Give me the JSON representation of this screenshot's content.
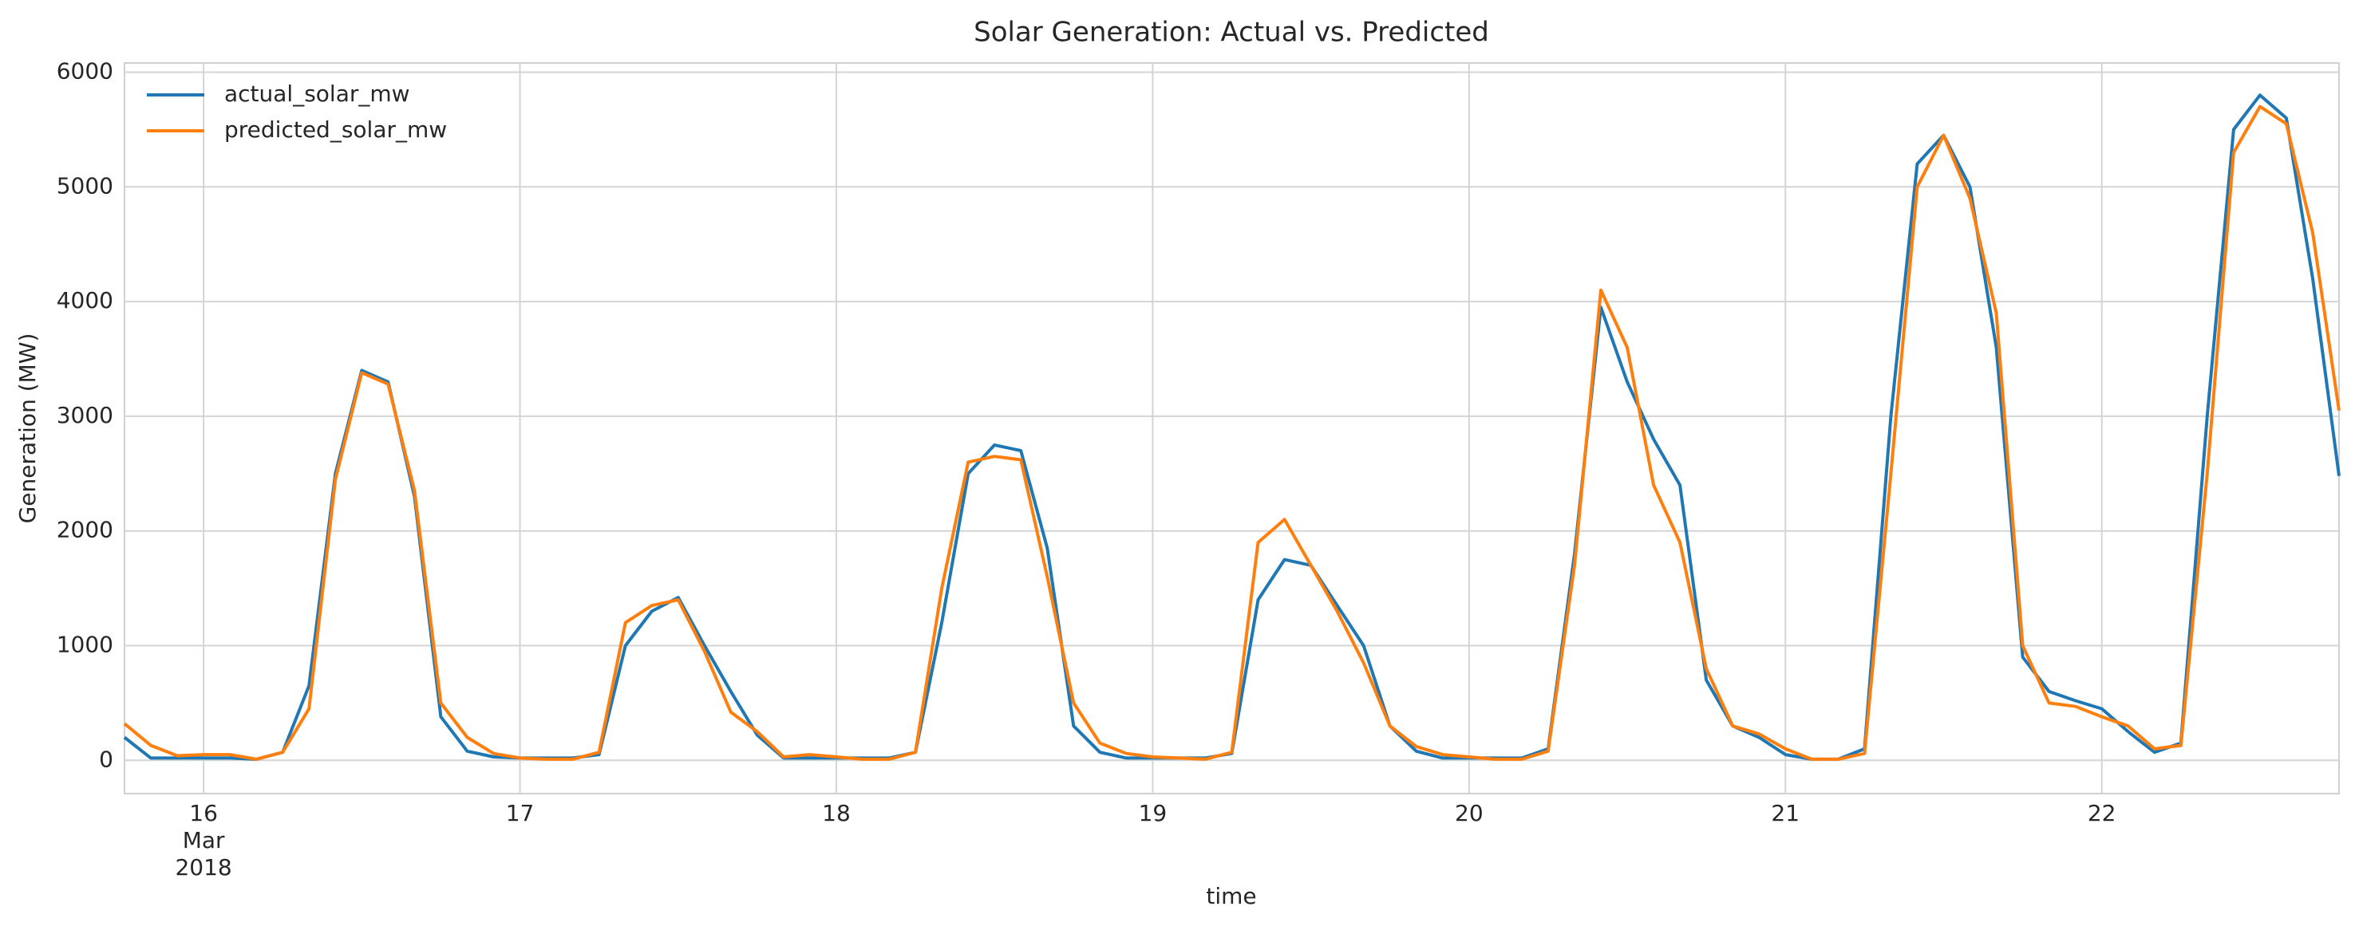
{
  "chart_data": {
    "type": "line",
    "title": "Solar Generation: Actual vs. Predicted",
    "xlabel": "time",
    "ylabel": "Generation (MW)",
    "x": [
      15.75,
      15.8333,
      15.9167,
      16,
      16.0833,
      16.1667,
      16.25,
      16.3333,
      16.4167,
      16.5,
      16.5833,
      16.6667,
      16.75,
      16.8333,
      16.9167,
      17,
      17.0833,
      17.1667,
      17.25,
      17.3333,
      17.4167,
      17.5,
      17.5833,
      17.6667,
      17.75,
      17.8333,
      17.9167,
      18,
      18.0833,
      18.1667,
      18.25,
      18.3333,
      18.4167,
      18.5,
      18.5833,
      18.6667,
      18.75,
      18.8333,
      18.9167,
      19,
      19.0833,
      19.1667,
      19.25,
      19.3333,
      19.4167,
      19.5,
      19.5833,
      19.6667,
      19.75,
      19.8333,
      19.9167,
      20,
      20.0833,
      20.1667,
      20.25,
      20.3333,
      20.4167,
      20.5,
      20.5833,
      20.6667,
      20.75,
      20.8333,
      20.9167,
      21,
      21.0833,
      21.1667,
      21.25,
      21.3333,
      21.4167,
      21.5,
      21.5833,
      21.6667,
      21.75,
      21.8333,
      21.9167,
      22,
      22.0833,
      22.1667,
      22.25,
      22.3333,
      22.4167,
      22.5,
      22.5833,
      22.6667,
      22.75
    ],
    "series": [
      {
        "name": "actual_solar_mw",
        "color": "#1f77b4",
        "values": [
          200,
          20,
          20,
          20,
          20,
          10,
          70,
          650,
          2500,
          3400,
          3300,
          2300,
          380,
          80,
          30,
          20,
          20,
          20,
          50,
          1000,
          1300,
          1420,
          1000,
          600,
          220,
          20,
          20,
          20,
          20,
          20,
          70,
          1200,
          2500,
          2750,
          2700,
          1850,
          300,
          70,
          20,
          20,
          20,
          20,
          60,
          1400,
          1750,
          1700,
          1350,
          1000,
          300,
          80,
          20,
          20,
          20,
          20,
          100,
          1800,
          3950,
          3300,
          2800,
          2400,
          700,
          300,
          200,
          50,
          10,
          10,
          100,
          3000,
          5200,
          5450,
          5000,
          3600,
          900,
          600,
          520,
          450,
          250,
          70,
          150,
          3000,
          5500,
          5800,
          5600,
          4200,
          2480
        ]
      },
      {
        "name": "predicted_solar_mw",
        "color": "#ff7f0e",
        "values": [
          320,
          130,
          40,
          50,
          50,
          10,
          70,
          450,
          2450,
          3380,
          3280,
          2350,
          500,
          200,
          60,
          20,
          10,
          10,
          70,
          1200,
          1350,
          1400,
          950,
          420,
          250,
          30,
          50,
          30,
          10,
          10,
          70,
          1500,
          2600,
          2650,
          2620,
          1600,
          500,
          150,
          60,
          30,
          20,
          10,
          70,
          1900,
          2100,
          1700,
          1300,
          850,
          300,
          120,
          50,
          30,
          10,
          10,
          80,
          1700,
          4100,
          3600,
          2400,
          1900,
          800,
          300,
          230,
          100,
          10,
          10,
          60,
          2500,
          5000,
          5450,
          4900,
          3900,
          1000,
          500,
          470,
          380,
          300,
          100,
          130,
          2500,
          5300,
          5700,
          5550,
          4600,
          3050
        ]
      }
    ],
    "xlim": [
      15.75,
      22.75
    ],
    "xticks": [
      16,
      17,
      18,
      19,
      20,
      21,
      22
    ],
    "xtick_sublabels": [
      "Mar",
      "2018"
    ],
    "ylim": [
      -290,
      6080
    ],
    "yticks": [
      0,
      1000,
      2000,
      3000,
      4000,
      5000,
      6000
    ],
    "grid": true,
    "legend": "upper left"
  }
}
